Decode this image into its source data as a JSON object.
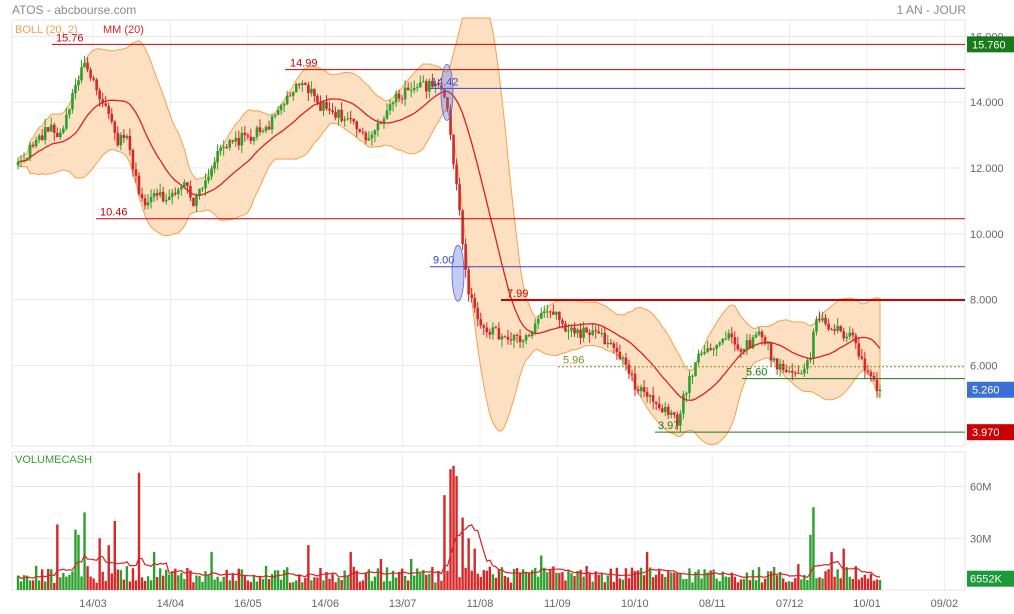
{
  "header": {
    "title": "ATOS - abcbourse.com",
    "period": "1 AN - JOUR",
    "legend_boll": "BOLL (20, 2)",
    "legend_mm": "MM (20)",
    "volume_label": "VOLUMECASH"
  },
  "colors": {
    "up": "#2ca02c",
    "down": "#d62728",
    "boll_fill": "#fde0c2",
    "boll_line": "#f5a04a",
    "ma": "#e02020",
    "res_line": "#cc0000",
    "blue_line": "#3344cc",
    "green_line": "#1a7a1a",
    "olive": "#8a8a20"
  },
  "chart_data": {
    "type": "candlestick",
    "price_axis": {
      "ticks": [
        "16.000",
        "14.000",
        "12.000",
        "10.000",
        "8.000",
        "6.000"
      ],
      "values": [
        16,
        14,
        12,
        10,
        8,
        6
      ],
      "range": [
        3.55,
        16.5
      ]
    },
    "volume_axis": {
      "ticks": [
        "60M",
        "30M"
      ],
      "values": [
        60,
        30
      ],
      "range": [
        0,
        80
      ]
    },
    "x_labels": [
      "14/03",
      "14/04",
      "16/05",
      "14/06",
      "13/07",
      "11/08",
      "11/09",
      "10/10",
      "08/11",
      "07/12",
      "10/01",
      "09/02"
    ],
    "levels": [
      {
        "label": "15.76",
        "value": 15.76,
        "kind": "res"
      },
      {
        "label": "14.99",
        "value": 14.99,
        "kind": "res"
      },
      {
        "label": "14.42",
        "value": 14.42,
        "kind": "blue"
      },
      {
        "label": "10.46",
        "value": 10.46,
        "kind": "res"
      },
      {
        "label": "9.00",
        "value": 9.0,
        "kind": "blue"
      },
      {
        "label": "7.99",
        "value": 7.99,
        "kind": "res"
      },
      {
        "label": "5.96",
        "value": 5.96,
        "kind": "dotted"
      },
      {
        "label": "5.60",
        "value": 5.6,
        "kind": "green"
      },
      {
        "label": "3.97",
        "value": 3.97,
        "kind": "green"
      }
    ],
    "badges": [
      {
        "label": "15.760",
        "value": 15.76,
        "color": "#1a7a1a"
      },
      {
        "label": "5.260",
        "value": 5.26,
        "color": "#3b6fd6"
      },
      {
        "label": "3.970",
        "value": 3.97,
        "color": "#cc0000"
      }
    ],
    "volume_badge": {
      "label": "6552K",
      "value": 6.552
    },
    "price_anchors": [
      [
        0,
        12.1
      ],
      [
        5,
        12.7
      ],
      [
        10,
        13.2
      ],
      [
        14,
        13.0
      ],
      [
        18,
        14.2
      ],
      [
        21,
        15.1
      ],
      [
        24,
        14.9
      ],
      [
        27,
        14.0
      ],
      [
        30,
        13.6
      ],
      [
        33,
        12.8
      ],
      [
        36,
        12.9
      ],
      [
        39,
        11.6
      ],
      [
        42,
        10.9
      ],
      [
        46,
        11.2
      ],
      [
        50,
        11.1
      ],
      [
        54,
        11.6
      ],
      [
        58,
        11.0
      ],
      [
        62,
        11.7
      ],
      [
        66,
        12.4
      ],
      [
        70,
        12.7
      ],
      [
        74,
        12.9
      ],
      [
        78,
        13.0
      ],
      [
        84,
        13.4
      ],
      [
        90,
        14.3
      ],
      [
        95,
        14.5
      ],
      [
        100,
        13.9
      ],
      [
        105,
        13.7
      ],
      [
        110,
        13.4
      ],
      [
        115,
        12.8
      ],
      [
        120,
        13.5
      ],
      [
        125,
        14.1
      ],
      [
        130,
        14.5
      ],
      [
        135,
        14.5
      ],
      [
        140,
        14.4
      ],
      [
        142,
        13.9
      ],
      [
        145,
        11.4
      ],
      [
        147,
        9.8
      ],
      [
        149,
        8.3
      ],
      [
        152,
        7.4
      ],
      [
        157,
        7.0
      ],
      [
        162,
        6.8
      ],
      [
        168,
        6.8
      ],
      [
        173,
        7.5
      ],
      [
        176,
        7.7
      ],
      [
        180,
        7.2
      ],
      [
        185,
        7.0
      ],
      [
        190,
        7.0
      ],
      [
        195,
        6.7
      ],
      [
        200,
        6.1
      ],
      [
        204,
        5.4
      ],
      [
        210,
        4.9
      ],
      [
        214,
        4.6
      ],
      [
        218,
        4.3
      ],
      [
        222,
        5.6
      ],
      [
        226,
        6.5
      ],
      [
        230,
        6.6
      ],
      [
        235,
        6.9
      ],
      [
        238,
        6.5
      ],
      [
        242,
        6.7
      ],
      [
        246,
        7.0
      ],
      [
        250,
        6.1
      ],
      [
        254,
        5.8
      ],
      [
        258,
        5.8
      ],
      [
        262,
        6.2
      ],
      [
        264,
        7.5
      ],
      [
        268,
        7.2
      ],
      [
        272,
        7.0
      ],
      [
        276,
        6.8
      ],
      [
        278,
        6.3
      ],
      [
        281,
        5.85
      ],
      [
        283,
        5.4
      ],
      [
        285,
        5.26
      ]
    ],
    "volume_spikes": [
      [
        6,
        14
      ],
      [
        13,
        38
      ],
      [
        19,
        35
      ],
      [
        20,
        32
      ],
      [
        22,
        45
      ],
      [
        27,
        30
      ],
      [
        30,
        26
      ],
      [
        32,
        40
      ],
      [
        40,
        68
      ],
      [
        45,
        22
      ],
      [
        64,
        22
      ],
      [
        96,
        26
      ],
      [
        110,
        22
      ],
      [
        120,
        18
      ],
      [
        130,
        18
      ],
      [
        141,
        55
      ],
      [
        143,
        70
      ],
      [
        144,
        72
      ],
      [
        145,
        66
      ],
      [
        147,
        42
      ],
      [
        149,
        30
      ],
      [
        151,
        24
      ],
      [
        173,
        20
      ],
      [
        208,
        22
      ],
      [
        258,
        15
      ],
      [
        262,
        32
      ],
      [
        263,
        48
      ],
      [
        269,
        22
      ],
      [
        273,
        24
      ]
    ]
  }
}
